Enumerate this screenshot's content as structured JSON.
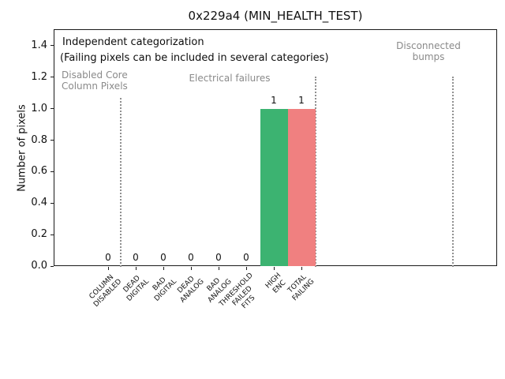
{
  "title": "0x229a4 (MIN_HEALTH_TEST)",
  "annotations": {
    "independent": "Independent categorization",
    "note": "(Failing pixels can be included in several categories)",
    "region_disabled_core": "Disabled Core\nColumn Pixels",
    "region_electrical": "Electrical failures",
    "region_disconnected": "Disconnected\nbumps"
  },
  "chart_data": {
    "type": "bar",
    "title": "0x229a4 (MIN_HEALTH_TEST)",
    "xlabel": "",
    "ylabel": "Number of pixels",
    "ylim": [
      0,
      1.4
    ],
    "yticks": [
      "0.0",
      "0.2",
      "0.4",
      "0.6",
      "0.8",
      "1.0",
      "1.2",
      "1.4"
    ],
    "grid": false,
    "legend": false,
    "categories": [
      {
        "label": "COLUMN DISABLED",
        "label_lines": [
          "COLUMN",
          "DISABLED"
        ],
        "value": 0,
        "value_label": "0",
        "color": null
      },
      {
        "label": "DEAD DIGITAL",
        "label_lines": [
          "DEAD",
          "DIGITAL"
        ],
        "value": 0,
        "value_label": "0",
        "color": null
      },
      {
        "label": "BAD DIGITAL",
        "label_lines": [
          "BAD",
          "DIGITAL"
        ],
        "value": 0,
        "value_label": "0",
        "color": null
      },
      {
        "label": "DEAD ANALOG",
        "label_lines": [
          "DEAD",
          "ANALOG"
        ],
        "value": 0,
        "value_label": "0",
        "color": null
      },
      {
        "label": "BAD ANALOG",
        "label_lines": [
          "BAD",
          "ANALOG"
        ],
        "value": 0,
        "value_label": "0",
        "color": null
      },
      {
        "label": "THRESHOLD FAILED FITS",
        "label_lines": [
          "THRESHOLD",
          "FAILED",
          "FITS"
        ],
        "value": 0,
        "value_label": "0",
        "color": null
      },
      {
        "label": "HIGH ENC",
        "label_lines": [
          "HIGH",
          "ENC"
        ],
        "value": 1,
        "value_label": "1",
        "color": "#3cb371"
      },
      {
        "label": "TOTAL FAILING",
        "label_lines": [
          "TOTAL",
          "FAILING"
        ],
        "value": 1,
        "value_label": "1",
        "color": "#f08080"
      }
    ],
    "region_separators": [
      "after COLUMN DISABLED",
      "after TOTAL FAILING",
      "before disconnected bumps area"
    ],
    "colors": {
      "high_enc_bar": "#3cb371",
      "total_failing_bar": "#f08080",
      "gray_annotations": "#8a8a8a",
      "separator_lines": "#909090"
    }
  }
}
